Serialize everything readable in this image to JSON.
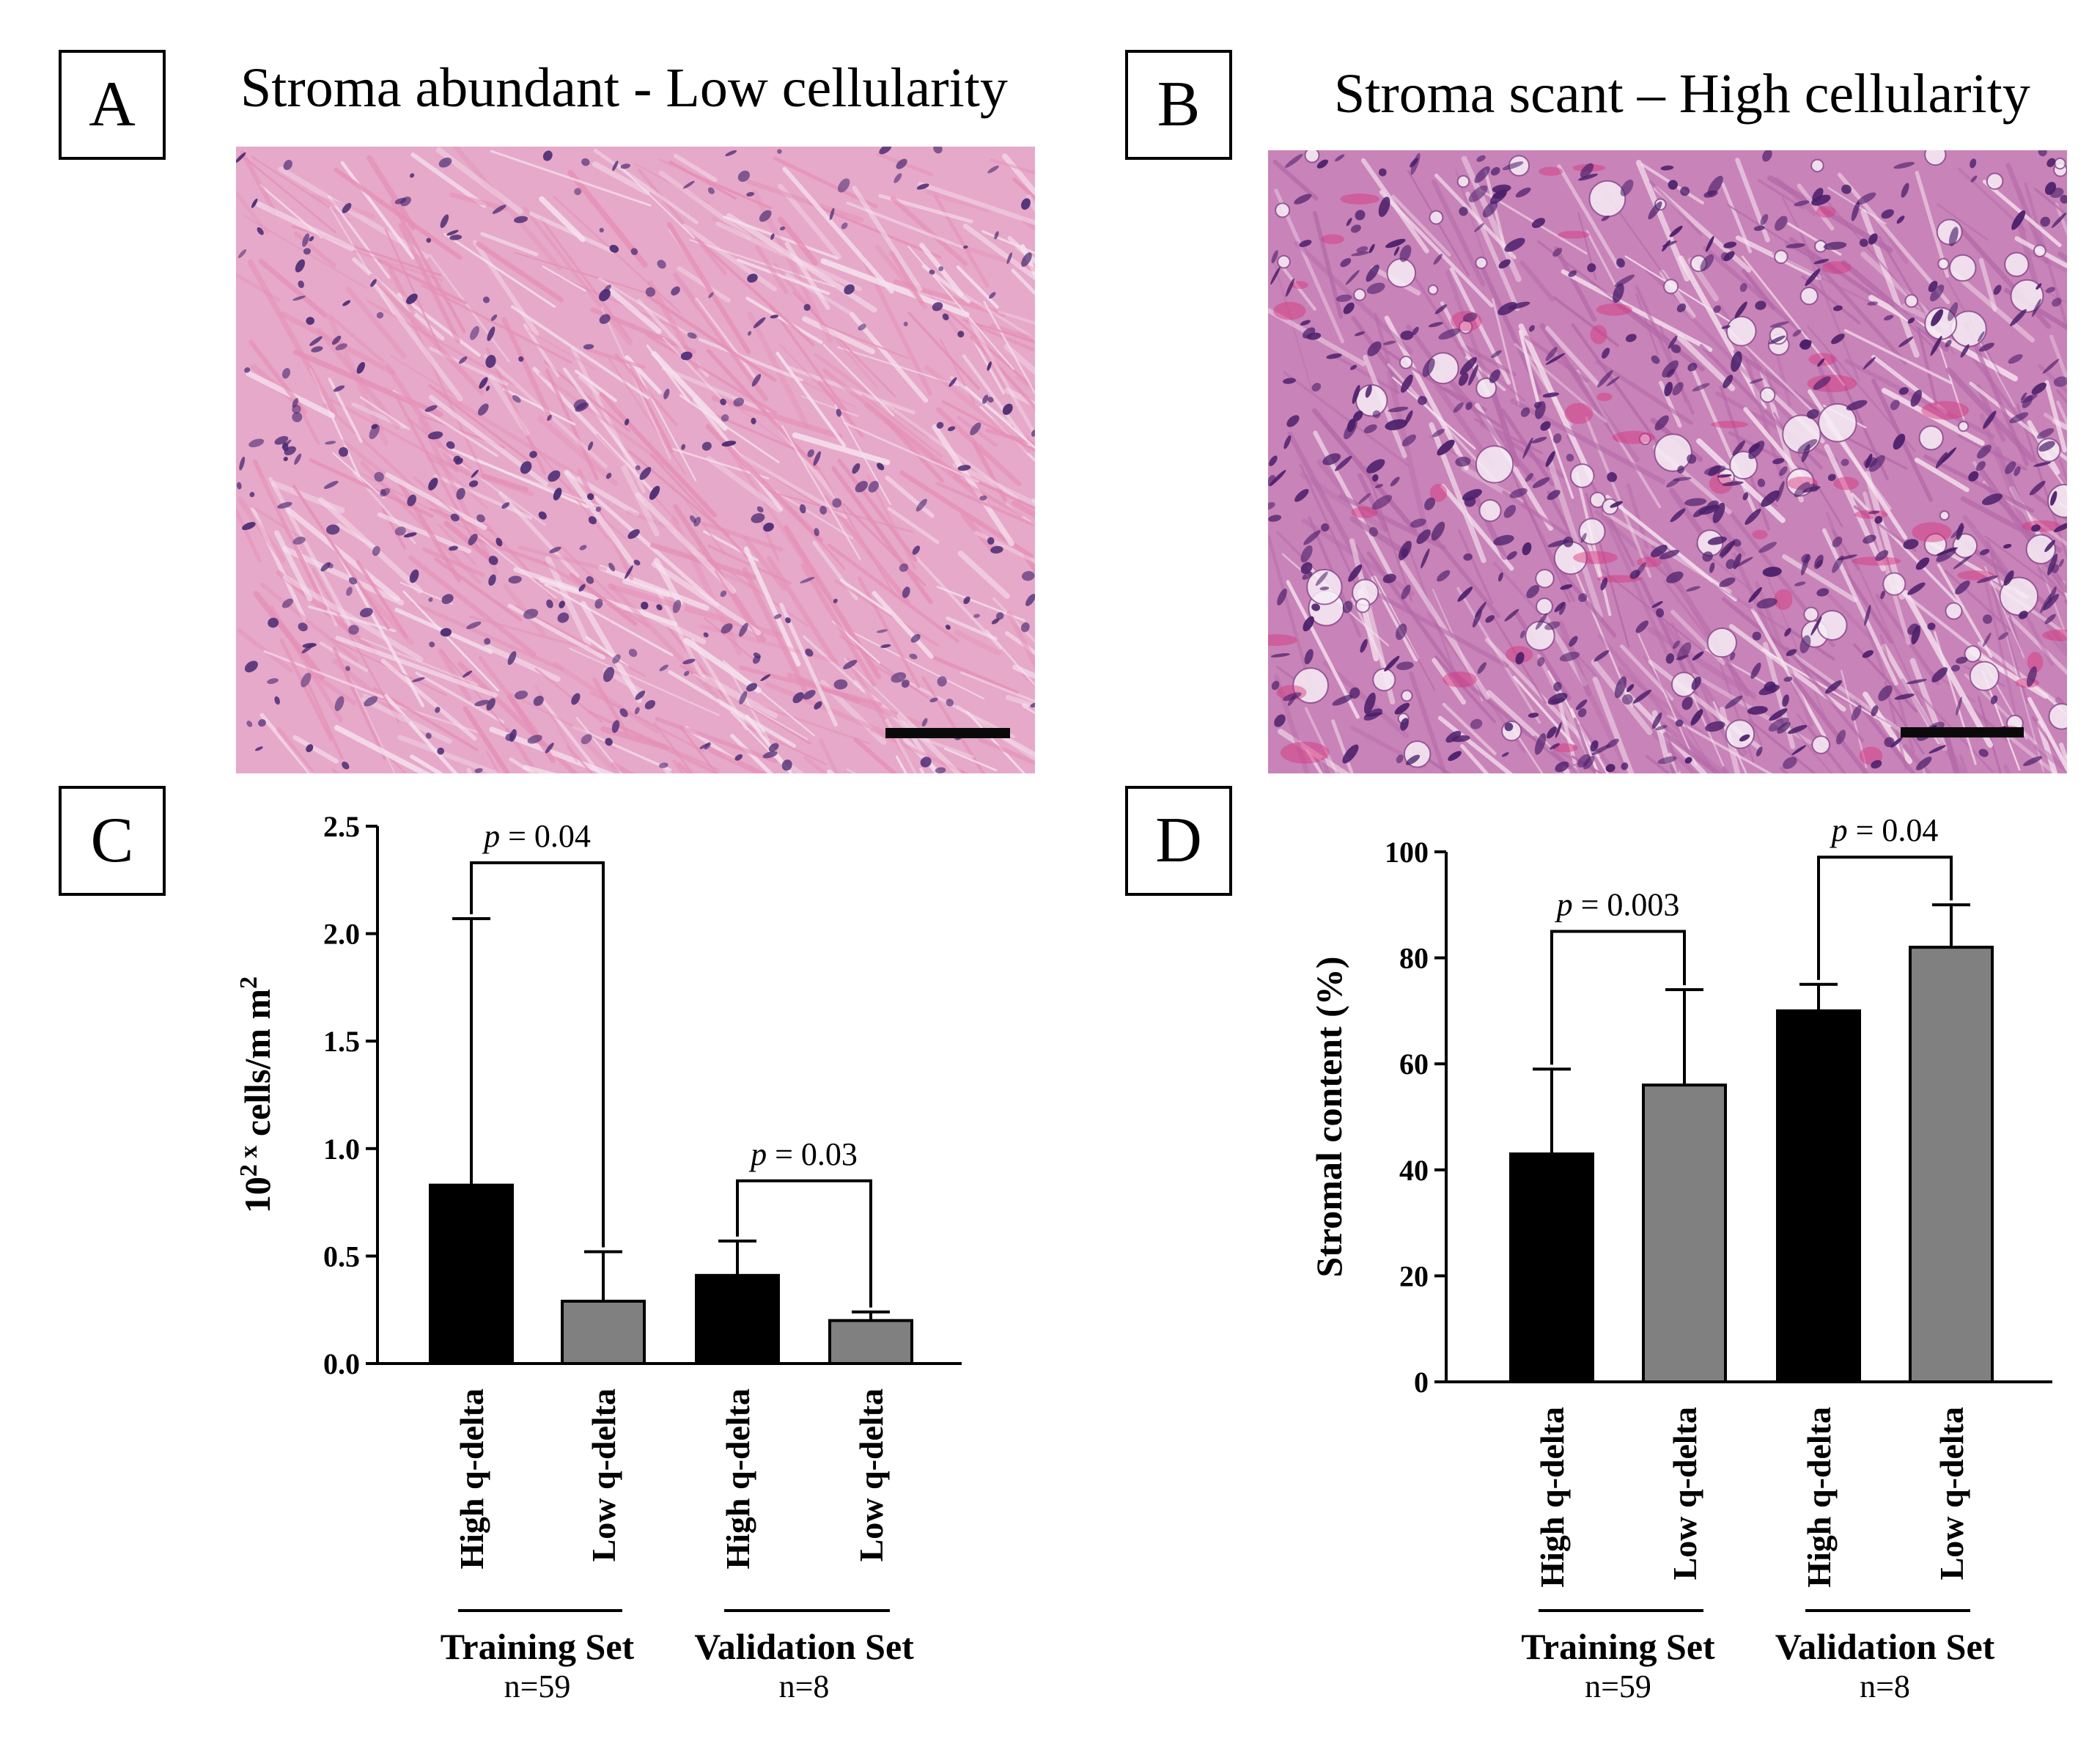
{
  "panels": {
    "a": {
      "letter": "A",
      "title": "Stroma abundant - Low cellularity"
    },
    "b": {
      "letter": "B",
      "title": "Stroma scant – High cellularity"
    },
    "c": {
      "letter": "C"
    },
    "d": {
      "letter": "D"
    }
  },
  "micrographs": {
    "a": {
      "base_color": "#e6a9c9",
      "fiber_color": "#e58fb6",
      "nucleus_color": "#4a2a72",
      "density": "low"
    },
    "b": {
      "base_color": "#c883b8",
      "fiber_color": "#b46aa8",
      "nucleus_color": "#4b1f6a",
      "density": "high"
    }
  },
  "colors": {
    "high_bar": "#000000",
    "low_bar": "#808080",
    "axis": "#000000"
  },
  "chart_data": [
    {
      "id": "C",
      "type": "bar",
      "ylabel_base": "10",
      "ylabel_sup1": "2",
      "ylabel_sup2": "x",
      "ylabel_unit": "cells/m m",
      "ylabel_sup3": "2",
      "ylim": [
        0,
        2.5
      ],
      "yticks": [
        0.0,
        0.5,
        1.0,
        1.5,
        2.0,
        2.5
      ],
      "ytick_labels": [
        "0.0",
        "0.5",
        "1.0",
        "1.5",
        "2.0",
        "2.5"
      ],
      "categories": [
        "High q-delta",
        "Low q-delta",
        "High q-delta",
        "Low q-delta"
      ],
      "values": [
        0.83,
        0.29,
        0.41,
        0.2
      ],
      "errors": [
        2.07,
        0.52,
        0.57,
        0.24
      ],
      "groups": [
        {
          "name": "Training Set",
          "n": "n=59"
        },
        {
          "name": "Validation Set",
          "n": "n=8"
        }
      ],
      "comparisons": [
        {
          "p_symbol": "p",
          "p_rest": " = 0.04",
          "bars": [
            0,
            1
          ],
          "bracket_y": 2.33
        },
        {
          "p_symbol": "p",
          "p_rest": " = 0.03",
          "bars": [
            2,
            3
          ],
          "bracket_y": 0.85
        }
      ]
    },
    {
      "id": "D",
      "type": "bar",
      "ylabel": "Stromal content (%)",
      "ylim": [
        0,
        100
      ],
      "yticks": [
        0,
        20,
        40,
        60,
        80,
        100
      ],
      "ytick_labels": [
        "0",
        "20",
        "40",
        "60",
        "80",
        "100"
      ],
      "categories": [
        "High q-delta",
        "Low q-delta",
        "High q-delta",
        "Low q-delta"
      ],
      "values": [
        43,
        56,
        70,
        82
      ],
      "errors": [
        59,
        74,
        75,
        90
      ],
      "groups": [
        {
          "name": "Training Set",
          "n": "n=59"
        },
        {
          "name": "Validation Set",
          "n": "n=8"
        }
      ],
      "comparisons": [
        {
          "p_symbol": "p",
          "p_rest": " = 0.003",
          "bars": [
            0,
            1
          ],
          "bracket_y": 85
        },
        {
          "p_symbol": "p",
          "p_rest": " = 0.04",
          "bars": [
            2,
            3
          ],
          "bracket_y": 99
        }
      ]
    }
  ]
}
